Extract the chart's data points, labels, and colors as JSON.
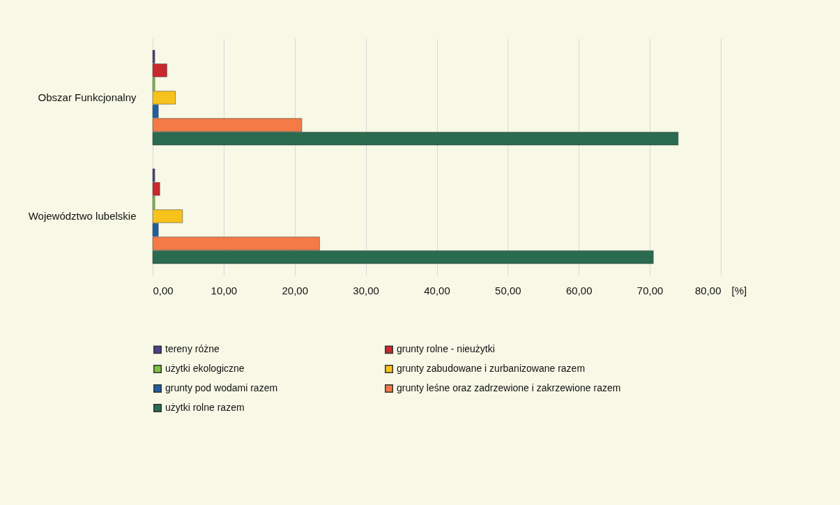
{
  "chart_data": {
    "type": "bar",
    "orientation": "horizontal",
    "xlabel": "[%]",
    "categories": [
      "Obszar Funkcjonalny",
      "Województwo lubelskie"
    ],
    "series": [
      {
        "name": "tereny różne",
        "color": "#4b3f8a",
        "values": [
          0.3,
          0.3
        ]
      },
      {
        "name": "grunty rolne - nieużytki",
        "color": "#c8282e",
        "values": [
          2.0,
          1.0
        ]
      },
      {
        "name": "użytki ekologiczne",
        "color": "#7cc242",
        "values": [
          0.3,
          0.3
        ]
      },
      {
        "name": "grunty zabudowane i zurbanizowane razem",
        "color": "#f7c21b",
        "values": [
          3.2,
          4.2
        ]
      },
      {
        "name": "grunty pod wodami razem",
        "color": "#1f5fa0",
        "values": [
          0.8,
          0.8
        ]
      },
      {
        "name": "grunty leśne oraz zadrzewione i zakrzewione razem",
        "color": "#f47b45",
        "values": [
          21,
          23.5
        ]
      },
      {
        "name": "użytki rolne razem",
        "color": "#2a6b4f",
        "values": [
          74,
          70.5
        ]
      }
    ],
    "xlim": [
      0,
      80
    ],
    "xticks": [
      {
        "value": 0,
        "label": "0,00"
      },
      {
        "value": 10,
        "label": "10,00"
      },
      {
        "value": 20,
        "label": "20,00"
      },
      {
        "value": 30,
        "label": "30,00"
      },
      {
        "value": 40,
        "label": "40,00"
      },
      {
        "value": 50,
        "label": "50,00"
      },
      {
        "value": 60,
        "label": "60,00"
      },
      {
        "value": 70,
        "label": "70,00"
      },
      {
        "value": 80,
        "label": "80,00"
      }
    ],
    "grid": "x",
    "legend": "bottom"
  }
}
